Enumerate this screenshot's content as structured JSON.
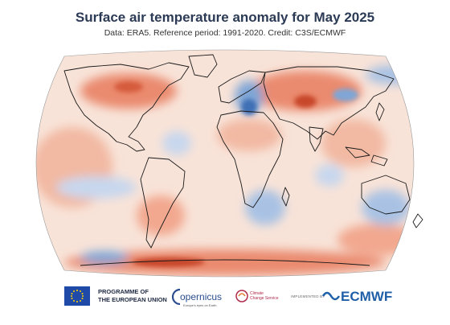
{
  "header": {
    "title": "Surface air temperature anomaly for May 2025",
    "subtitle": "Data: ERA5.  Reference period: 1991-2020.  Credit: C3S/ECMWF"
  },
  "map": {
    "projection": "robinson",
    "colors": {
      "warm_strong": "#c8462a",
      "warm_mid": "#ea8a6e",
      "warm_light": "#f6c9b6",
      "neutral": "#f7eee9",
      "cool_light": "#c7d7ee",
      "cool_mid": "#7fa6d6",
      "cool_strong": "#3f6fb5",
      "coastline": "#1a1a1a"
    }
  },
  "footer": {
    "programme_line1": "PROGRAMME OF",
    "programme_line2": "THE EUROPEAN UNION",
    "copernicus_name": "opernicus",
    "copernicus_tagline": "Europe's eyes on Earth",
    "c3s_line1": "Climate",
    "c3s_line2": "Change Service",
    "implemented_by": "IMPLEMENTED BY",
    "ecmwf_name": "ECMWF"
  }
}
